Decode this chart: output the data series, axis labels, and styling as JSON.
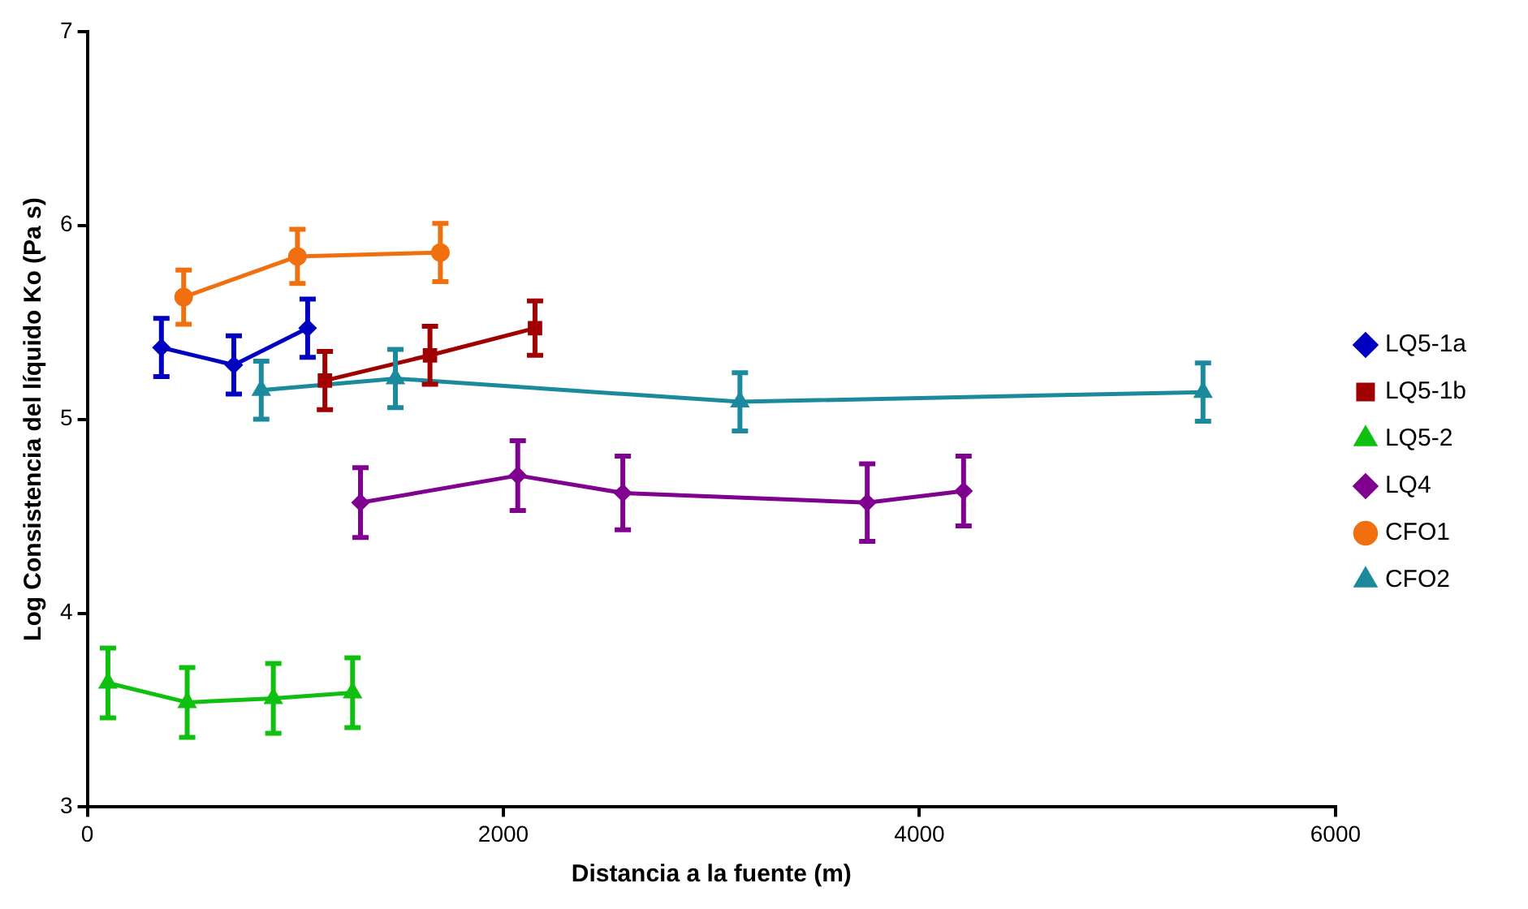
{
  "chart_data": {
    "type": "line",
    "xlabel": "Distancia a la fuente (m)",
    "ylabel": "Log Consistencia del líquido Ko (Pa s)",
    "xlim": [
      0,
      6000
    ],
    "xticks": [
      0,
      2000,
      4000,
      6000
    ],
    "ylim": [
      3,
      7
    ],
    "yticks": [
      3,
      4,
      5,
      6,
      7
    ],
    "grid": false,
    "legend": "right",
    "series": [
      {
        "name": "LQ5-1a",
        "color": "#0000c0",
        "marker": "diamond",
        "x": [
          356,
          704,
          1059
        ],
        "values": [
          5.37,
          5.28,
          5.47
        ],
        "errors": [
          0.15,
          0.15,
          0.15
        ]
      },
      {
        "name": "LQ5-1b",
        "color": "#a00000",
        "marker": "square",
        "x": [
          1142,
          1647,
          2152
        ],
        "values": [
          5.2,
          5.33,
          5.47
        ],
        "errors": [
          0.15,
          0.15,
          0.14
        ]
      },
      {
        "name": "LQ5-2",
        "color": "#10c010",
        "marker": "triangle",
        "x": [
          99,
          480,
          894,
          1275
        ],
        "values": [
          3.64,
          3.54,
          3.56,
          3.59
        ],
        "errors": [
          0.18,
          0.18,
          0.18,
          0.18
        ]
      },
      {
        "name": "LQ4",
        "color": "#800090",
        "marker": "diamond",
        "x": [
          1313,
          2069,
          2574,
          3749,
          4212
        ],
        "values": [
          4.57,
          4.71,
          4.62,
          4.57,
          4.63
        ],
        "errors": [
          0.18,
          0.18,
          0.19,
          0.2,
          0.18
        ]
      },
      {
        "name": "CFO1",
        "color": "#f07010",
        "marker": "circle",
        "x": [
          463,
          1010,
          1697
        ],
        "values": [
          5.63,
          5.84,
          5.86
        ],
        "errors": [
          0.14,
          0.14,
          0.15
        ]
      },
      {
        "name": "CFO2",
        "color": "#1a8a9c",
        "marker": "triangle",
        "x": [
          836,
          1481,
          3137,
          5363
        ],
        "values": [
          5.15,
          5.21,
          5.09,
          5.14
        ],
        "errors": [
          0.15,
          0.15,
          0.15,
          0.15
        ]
      }
    ]
  }
}
